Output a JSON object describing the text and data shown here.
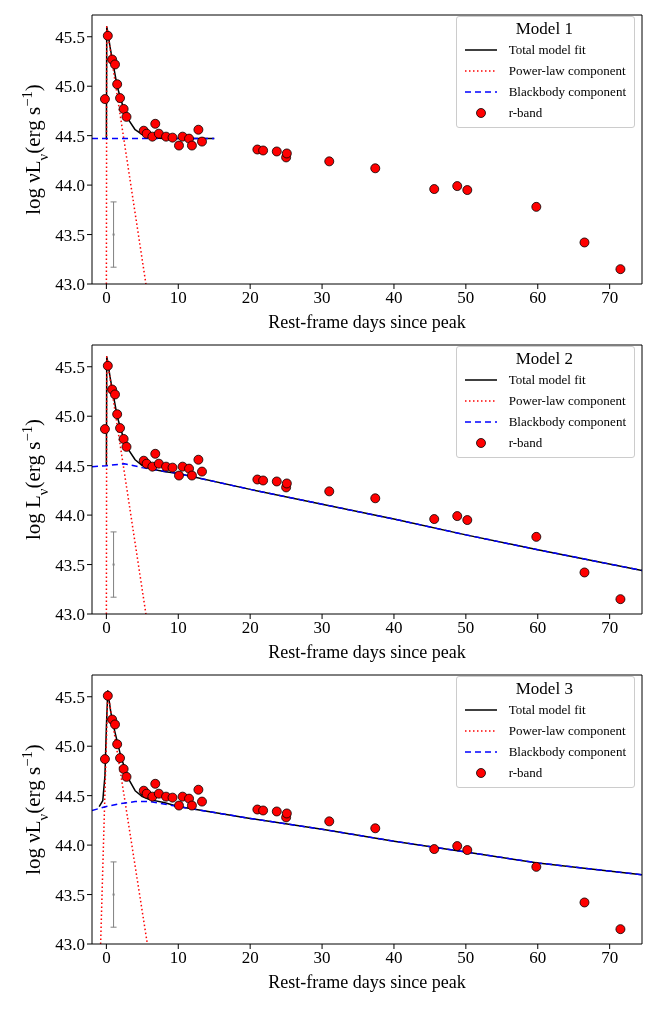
{
  "chart_data": [
    {
      "type": "line",
      "legend_title": "Model 1",
      "xlabel": "Rest-frame days since peak",
      "ylabel": "log νL$_{ν}$(erg s$^{−1}$)",
      "xlim": [
        -2,
        74.5
      ],
      "xticks": [
        0,
        10,
        20,
        30,
        40,
        50,
        60,
        70
      ],
      "ylim": [
        43,
        45.72
      ],
      "yticks": [
        {
          "value": 43,
          "label": "43.0"
        },
        43.5,
        {
          "value": 44,
          "label": "44.0"
        },
        44.5,
        {
          "value": 45,
          "label": "45.0"
        },
        45.5
      ],
      "legend": "top right",
      "grid": false,
      "series": [
        {
          "name": "Total model fit",
          "type": "line",
          "color": "#000000",
          "line_style": "solid",
          "x": [
            0,
            0.05,
            0.2,
            0.5,
            1,
            1.5,
            2,
            2.5,
            3,
            4,
            5,
            6,
            8,
            15
          ],
          "values": [
            44.47,
            45.6,
            45.55,
            45.4,
            45.2,
            45.0,
            44.87,
            44.75,
            44.67,
            44.56,
            44.51,
            44.48,
            44.47,
            44.47
          ]
        },
        {
          "name": "Power-law component",
          "type": "line",
          "color": "#ff0000",
          "line_style": "dotted",
          "x": [
            0,
            0.05,
            5.5
          ],
          "values": [
            43,
            45.6,
            43
          ]
        },
        {
          "name": "Blackbody component",
          "type": "line",
          "color": "#0000ff",
          "line_style": "dashed",
          "x": [
            -2,
            15
          ],
          "values": [
            44.47,
            44.47
          ]
        },
        {
          "name": "r-band",
          "type": "scatter",
          "marker": "circle",
          "color": "#ff0000",
          "x": [
            -0.2,
            0.2,
            0.8,
            1.2,
            1.5,
            1.9,
            2.4,
            2.8,
            5.2,
            5.6,
            6.4,
            6.8,
            7.3,
            8.3,
            9.2,
            10.1,
            10.6,
            11.5,
            11.9,
            12.8,
            13.3,
            21,
            21.8,
            23.7,
            25,
            25.1,
            31,
            37.4,
            45.6,
            48.8,
            50.2,
            59.8,
            66.5,
            71.5
          ],
          "values": [
            44.87,
            45.51,
            45.27,
            45.22,
            45.02,
            44.88,
            44.77,
            44.69,
            44.55,
            44.52,
            44.49,
            44.62,
            44.52,
            44.49,
            44.48,
            44.4,
            44.49,
            44.47,
            44.4,
            44.56,
            44.44,
            44.36,
            44.35,
            44.34,
            44.28,
            44.32,
            44.24,
            44.17,
            43.96,
            43.99,
            43.95,
            43.78,
            43.42,
            43.15
          ]
        },
        {
          "type": "scatter",
          "color": "#808080",
          "x": [
            1
          ],
          "values": [
            43.5
          ],
          "errors": [
            0.33
          ]
        }
      ]
    },
    {
      "type": "line",
      "legend_title": "Model 2",
      "xlabel": "Rest-frame days since peak",
      "ylabel": "log L$_{ν}$(erg s$^{−1}$)",
      "xlim": [
        -2,
        74.5
      ],
      "xticks": [
        0,
        10,
        20,
        30,
        40,
        50,
        60,
        70
      ],
      "ylim": [
        43,
        45.72
      ],
      "yticks": [
        {
          "value": 43,
          "label": "43.0"
        },
        43.5,
        {
          "value": 44,
          "label": "44.0"
        },
        44.5,
        {
          "value": 45,
          "label": "45.0"
        },
        45.5
      ],
      "legend": "top right",
      "grid": false,
      "series": [
        {
          "name": "Total model fit",
          "type": "line",
          "color": "#000000",
          "line_style": "solid",
          "x": [
            0,
            0.05,
            0.2,
            0.5,
            1,
            1.5,
            2,
            2.5,
            3,
            4,
            5,
            6,
            8,
            10,
            20,
            30,
            40,
            50,
            60,
            74.5
          ],
          "values": [
            44.5,
            45.6,
            45.55,
            45.4,
            45.2,
            45.0,
            44.87,
            44.75,
            44.67,
            44.56,
            44.5,
            44.47,
            44.44,
            44.42,
            44.26,
            44.11,
            43.96,
            43.8,
            43.65,
            43.44
          ]
        },
        {
          "name": "Power-law component",
          "type": "line",
          "color": "#ff0000",
          "line_style": "dotted",
          "x": [
            0,
            0.05,
            5.5
          ],
          "values": [
            43,
            45.6,
            43
          ]
        },
        {
          "name": "Blackbody component",
          "type": "line",
          "color": "#0000ff",
          "line_style": "dashed",
          "x": [
            -2,
            0,
            2.5,
            5,
            10,
            20,
            30,
            40,
            50,
            60,
            74.5
          ],
          "values": [
            44.49,
            44.5,
            44.52,
            44.48,
            44.42,
            44.26,
            44.11,
            43.96,
            43.8,
            43.65,
            43.44
          ]
        },
        {
          "name": "r-band",
          "type": "scatter",
          "marker": "circle",
          "color": "#ff0000",
          "x": [
            -0.2,
            0.2,
            0.8,
            1.2,
            1.5,
            1.9,
            2.4,
            2.8,
            5.2,
            5.6,
            6.4,
            6.8,
            7.3,
            8.3,
            9.2,
            10.1,
            10.6,
            11.5,
            11.9,
            12.8,
            13.3,
            21,
            21.8,
            23.7,
            25,
            25.1,
            31,
            37.4,
            45.6,
            48.8,
            50.2,
            59.8,
            66.5,
            71.5
          ],
          "values": [
            44.87,
            45.51,
            45.27,
            45.22,
            45.02,
            44.88,
            44.77,
            44.69,
            44.55,
            44.52,
            44.49,
            44.62,
            44.52,
            44.49,
            44.48,
            44.4,
            44.49,
            44.47,
            44.4,
            44.56,
            44.44,
            44.36,
            44.35,
            44.34,
            44.28,
            44.32,
            44.24,
            44.17,
            43.96,
            43.99,
            43.95,
            43.78,
            43.42,
            43.15
          ]
        },
        {
          "type": "scatter",
          "color": "#808080",
          "x": [
            1
          ],
          "values": [
            43.5
          ],
          "errors": [
            0.33
          ]
        }
      ]
    },
    {
      "type": "line",
      "legend_title": "Model 3",
      "xlabel": "Rest-frame days since peak",
      "ylabel": "log νL$_{ν}$(erg s$^{−1}$)",
      "xlim": [
        -2,
        74.5
      ],
      "xticks": [
        0,
        10,
        20,
        30,
        40,
        50,
        60,
        70
      ],
      "ylim": [
        43,
        45.72
      ],
      "yticks": [
        {
          "value": 43,
          "label": "43.0"
        },
        43.5,
        {
          "value": 44,
          "label": "44.0"
        },
        44.5,
        {
          "value": 45,
          "label": "45.0"
        },
        45.5
      ],
      "legend": "top right",
      "grid": false,
      "series": [
        {
          "name": "Total model fit",
          "type": "line",
          "color": "#000000",
          "line_style": "solid",
          "x": [
            -1,
            -0.5,
            -0.2,
            0,
            0.2,
            0.6,
            1,
            2,
            3,
            4,
            5,
            6,
            8,
            10,
            20,
            30,
            40,
            50,
            60,
            74.5
          ],
          "values": [
            44.39,
            44.45,
            44.7,
            45.2,
            45.56,
            45.35,
            45.2,
            44.9,
            44.68,
            44.55,
            44.49,
            44.46,
            44.43,
            44.39,
            44.27,
            44.16,
            44.04,
            43.93,
            43.82,
            43.7
          ]
        },
        {
          "name": "Power-law component",
          "type": "line",
          "color": "#ff0000",
          "line_style": "dotted",
          "x": [
            -0.8,
            0.2,
            5.7
          ],
          "values": [
            43,
            45.55,
            43
          ]
        },
        {
          "name": "Blackbody component",
          "type": "line",
          "color": "#0000ff",
          "line_style": "dashed",
          "x": [
            -2,
            0,
            2,
            4,
            6,
            10,
            20,
            30,
            40,
            50,
            60,
            74.5
          ],
          "values": [
            44.35,
            44.39,
            44.42,
            44.44,
            44.44,
            44.39,
            44.27,
            44.16,
            44.04,
            43.93,
            43.82,
            43.7
          ]
        },
        {
          "name": "r-band",
          "type": "scatter",
          "marker": "circle",
          "color": "#ff0000",
          "x": [
            -0.2,
            0.2,
            0.8,
            1.2,
            1.5,
            1.9,
            2.4,
            2.8,
            5.2,
            5.6,
            6.4,
            6.8,
            7.3,
            8.3,
            9.2,
            10.1,
            10.6,
            11.5,
            11.9,
            12.8,
            13.3,
            21,
            21.8,
            23.7,
            25,
            25.1,
            31,
            37.4,
            45.6,
            48.8,
            50.2,
            59.8,
            66.5,
            71.5
          ],
          "values": [
            44.87,
            45.51,
            45.27,
            45.22,
            45.02,
            44.88,
            44.77,
            44.69,
            44.55,
            44.52,
            44.49,
            44.62,
            44.52,
            44.49,
            44.48,
            44.4,
            44.49,
            44.47,
            44.4,
            44.56,
            44.44,
            44.36,
            44.35,
            44.34,
            44.28,
            44.32,
            44.24,
            44.17,
            43.96,
            43.99,
            43.95,
            43.78,
            43.42,
            43.15
          ]
        },
        {
          "type": "scatter",
          "color": "#808080",
          "x": [
            1
          ],
          "values": [
            43.5
          ],
          "errors": [
            0.33
          ]
        }
      ]
    }
  ]
}
